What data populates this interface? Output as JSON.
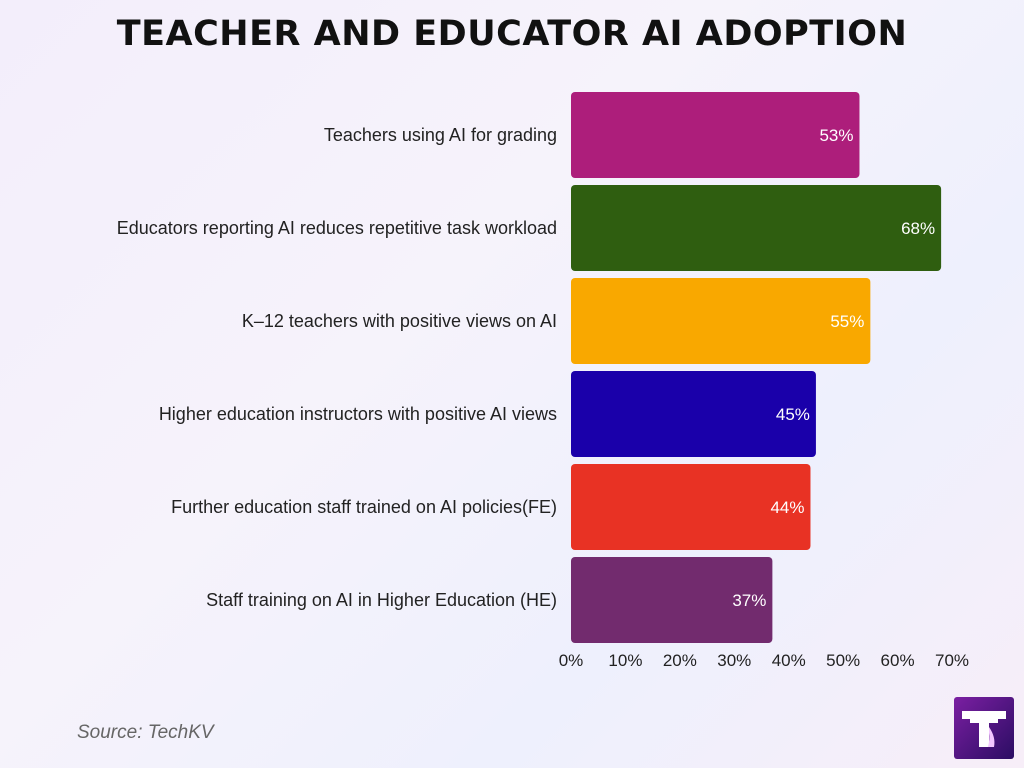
{
  "title": "TEACHER AND EDUCATOR AI ADOPTION",
  "source": "Source: TechKV",
  "chart_data": {
    "type": "bar",
    "orientation": "horizontal",
    "categories": [
      "Teachers using AI for grading",
      "Educators reporting AI reduces repetitive task workload",
      "K–12 teachers with positive views on AI",
      "Higher education instructors with positive AI views",
      "Further education staff trained on AI policies(FE)",
      "Staff training on AI in Higher Education (HE)"
    ],
    "values": [
      53,
      68,
      55,
      45,
      44,
      37
    ],
    "value_labels": [
      "53%",
      "68%",
      "55%",
      "45%",
      "44%",
      "37%"
    ],
    "colors": [
      "#ad1e7b",
      "#2f5e10",
      "#f9a800",
      "#1a00aa",
      "#e83224",
      "#722b6e"
    ],
    "xlim": [
      0,
      70
    ],
    "ticks": [
      "0%",
      "10%",
      "20%",
      "30%",
      "40%",
      "50%",
      "60%",
      "70%"
    ],
    "tick_values": [
      0,
      10,
      20,
      30,
      40,
      50,
      60,
      70
    ],
    "grid": false,
    "legend": "none"
  },
  "logo": {
    "name": "techkv-logo-icon",
    "colors": [
      "#7b1fa2",
      "#2b0d63"
    ]
  }
}
